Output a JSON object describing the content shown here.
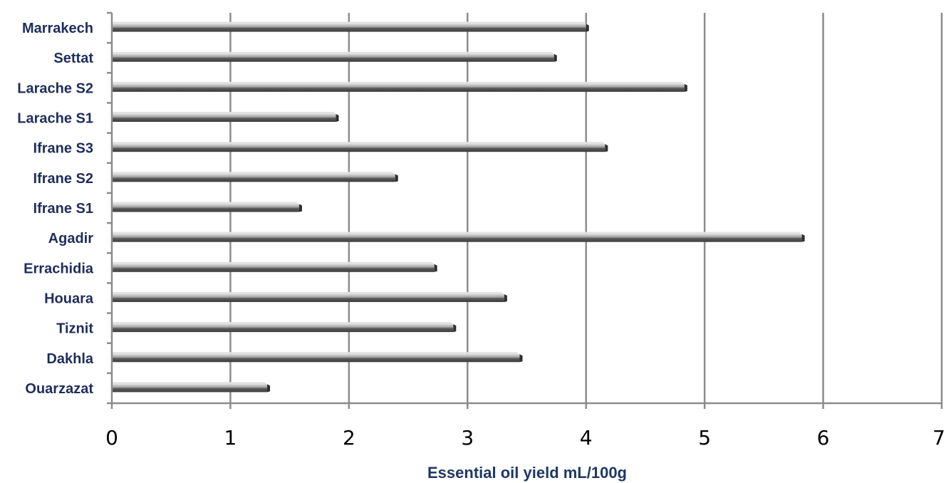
{
  "chart_data": {
    "type": "bar",
    "orientation": "horizontal",
    "categories": [
      "Marrakech",
      "Settat",
      "Larache S2",
      "Larache S1",
      "Ifrane S3",
      "Ifrane S2",
      "Ifrane S1",
      "Agadir",
      "Errachidia",
      "Houara",
      "Tiznit",
      "Dakhla",
      "Ouarzazat"
    ],
    "values": [
      4.0,
      3.73,
      4.83,
      1.89,
      4.16,
      2.39,
      1.58,
      5.82,
      2.72,
      3.31,
      2.88,
      3.44,
      1.31
    ],
    "xlabel": "Essential oil yield mL/100g",
    "ylabel": "",
    "xlim": [
      0,
      7
    ],
    "xticks": [
      "0",
      "1",
      "2",
      "3",
      "4",
      "5",
      "6",
      "7"
    ],
    "grid": "vertical",
    "legend": "none",
    "colors": {
      "bar_dark": "#4a4a4a",
      "bar_light": "#bdbdbd",
      "grid": "#8c8c8c",
      "category_label": "#1f2d5c",
      "axis_title": "#1f3864"
    }
  }
}
